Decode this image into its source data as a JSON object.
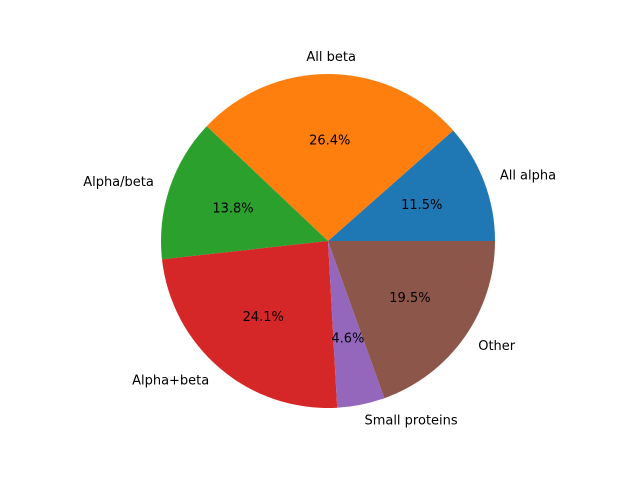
{
  "chart_data": {
    "type": "pie",
    "title": "",
    "slices": [
      {
        "label": "All alpha",
        "value": 11.5,
        "pct_label": "11.5%",
        "color": "#1f77b4"
      },
      {
        "label": "All beta",
        "value": 26.4,
        "pct_label": "26.4%",
        "color": "#ff7f0e"
      },
      {
        "label": "Alpha/beta",
        "value": 13.8,
        "pct_label": "13.8%",
        "color": "#2ca02c"
      },
      {
        "label": "Alpha+beta",
        "value": 24.1,
        "pct_label": "24.1%",
        "color": "#d62728"
      },
      {
        "label": "Small proteins",
        "value": 4.6,
        "pct_label": "4.6%",
        "color": "#9467bd"
      },
      {
        "label": "Other",
        "value": 19.5,
        "pct_label": "19.5%",
        "color": "#8c564b"
      }
    ],
    "start_angle_deg": 0,
    "direction": "counterclockwise",
    "legend": "none"
  }
}
